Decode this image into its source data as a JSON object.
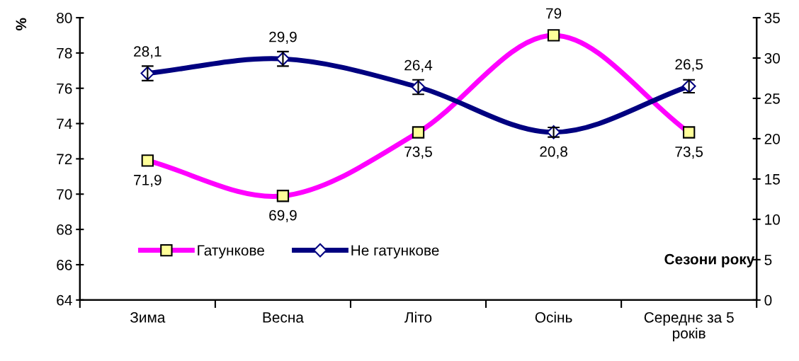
{
  "chart_data": {
    "type": "line",
    "ylabel": "%",
    "xlabel": "Сезони року",
    "categories": [
      "Зима",
      "Весна",
      "Літо",
      "Осінь",
      "Середнє за 5 років"
    ],
    "series": [
      {
        "name": "Гатункове",
        "color": "#ff00ff",
        "marker": "square",
        "values": [
          71.9,
          69.9,
          73.5,
          79,
          73.5
        ],
        "value_labels": [
          "71,9",
          "69,9",
          "73,5",
          "79",
          "73,5"
        ]
      },
      {
        "name": "Не гатункове",
        "color": "#000080",
        "marker": "diamond",
        "axis": "y2",
        "values": [
          28.1,
          29.9,
          26.4,
          20.8,
          26.5
        ],
        "errors": [
          0.9,
          0.9,
          0.9,
          0.6,
          0.8
        ],
        "value_labels": [
          "28,1",
          "29,9",
          "26,4",
          "20,8",
          "26,5"
        ]
      }
    ],
    "ylim": [
      64,
      80
    ],
    "yticks": [
      64,
      66,
      68,
      70,
      72,
      74,
      76,
      78,
      80
    ],
    "y2lim": [
      0,
      35
    ],
    "y2ticks": [
      0,
      5,
      10,
      15,
      20,
      25,
      30,
      35
    ],
    "legend": "bottom left",
    "grid": false,
    "line_style": "solid"
  }
}
